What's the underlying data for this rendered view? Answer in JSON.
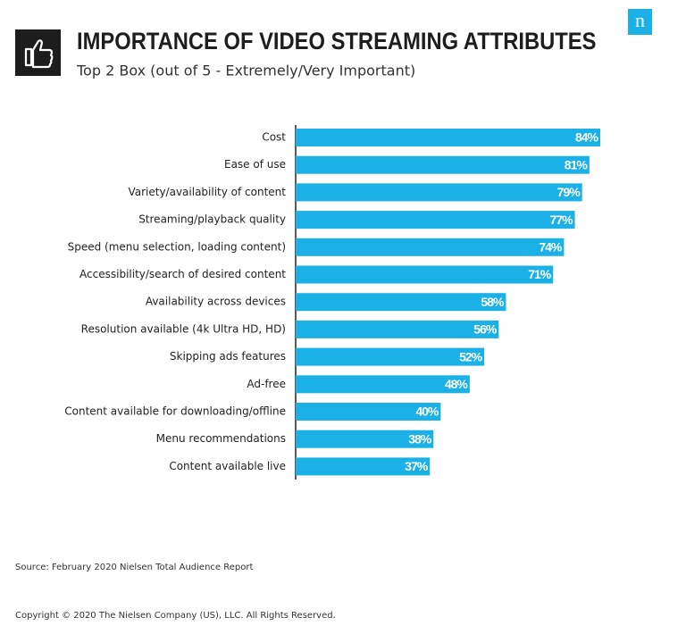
{
  "logo": "n",
  "chart_data": {
    "type": "bar",
    "orientation": "horizontal",
    "title": "IMPORTANCE OF VIDEO STREAMING ATTRIBUTES",
    "subtitle": "Top 2 Box (out of 5 - Extremely/Very Important)",
    "categories": [
      "Cost",
      "Ease of use",
      "Variety/availability of content",
      "Streaming/playback quality",
      "Speed (menu selection, loading content)",
      "Accessibility/search of desired content",
      "Availability across devices",
      "Resolution available (4k Ultra HD, HD)",
      "Skipping ads features",
      "Ad-free",
      "Content available for downloading/offline",
      "Menu recommendations",
      "Content available live"
    ],
    "values": [
      84,
      81,
      79,
      77,
      74,
      71,
      58,
      56,
      52,
      48,
      40,
      38,
      37
    ],
    "value_labels": [
      "84%",
      "81%",
      "79%",
      "77%",
      "74%",
      "71%",
      "58%",
      "56%",
      "52%",
      "48%",
      "40%",
      "38%",
      "37%"
    ],
    "color": "#1bb1e7",
    "source": "Source: February 2020 Nielsen Total Audience Report",
    "copyright": "Copyright © 2020 The Nielsen Company (US), LLC. All Rights Reserved."
  }
}
